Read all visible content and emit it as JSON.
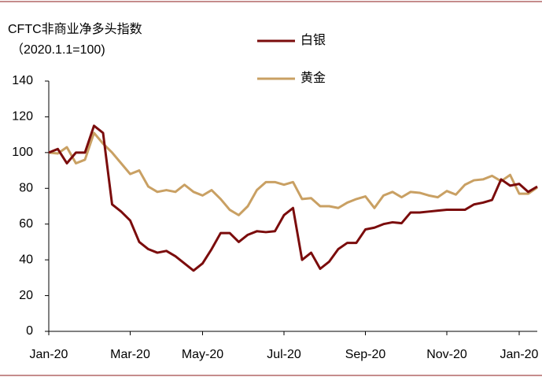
{
  "chart_data": {
    "type": "line",
    "title": "CFTC非商业净多头指数",
    "subtitle": "（2020.1.1=100)",
    "categories": [
      "Jan-20",
      null,
      null,
      null,
      null,
      null,
      null,
      null,
      null,
      "Mar-20",
      null,
      null,
      null,
      null,
      null,
      null,
      null,
      "May-20",
      null,
      null,
      null,
      null,
      null,
      null,
      null,
      null,
      "Jul-20",
      null,
      null,
      null,
      null,
      null,
      null,
      null,
      null,
      "Sep-20",
      null,
      null,
      null,
      null,
      null,
      null,
      null,
      null,
      "Nov-20",
      null,
      null,
      null,
      null,
      null,
      null,
      null,
      "Jan-20",
      null,
      null
    ],
    "series": [
      {
        "name": "白银",
        "color": "#7b0c0c",
        "values": [
          100,
          102,
          94,
          100,
          100,
          115,
          111,
          71,
          67,
          62,
          50,
          46,
          44,
          45,
          42,
          38,
          34,
          38,
          46,
          55,
          55,
          50,
          54,
          56,
          55.5,
          56,
          65,
          69,
          40,
          44,
          35,
          39,
          46,
          49.5,
          49.5,
          57,
          58,
          60,
          61,
          60.5,
          66.5,
          66.5,
          67,
          67.5,
          68,
          68,
          68,
          71,
          72,
          73.5,
          85,
          81.5,
          82.5,
          78,
          81
        ]
      },
      {
        "name": "黄金",
        "color": "#c9a063",
        "values": [
          100,
          99.5,
          103,
          94,
          96,
          111,
          105,
          100,
          94,
          88,
          90,
          81,
          78,
          79,
          78,
          82,
          78,
          76,
          79,
          74,
          68,
          65,
          70,
          79,
          83.5,
          83.5,
          82,
          83.5,
          74,
          74.5,
          70,
          70,
          69,
          72,
          74,
          75.5,
          69,
          76,
          78,
          75,
          78,
          77.5,
          76,
          75,
          78.5,
          76.5,
          82,
          84.5,
          85,
          87,
          84,
          87.5,
          77,
          77,
          80.5
        ]
      }
    ],
    "ylim": [
      0,
      140
    ],
    "yticks": [
      0,
      20,
      40,
      60,
      80,
      100,
      120,
      140
    ]
  }
}
